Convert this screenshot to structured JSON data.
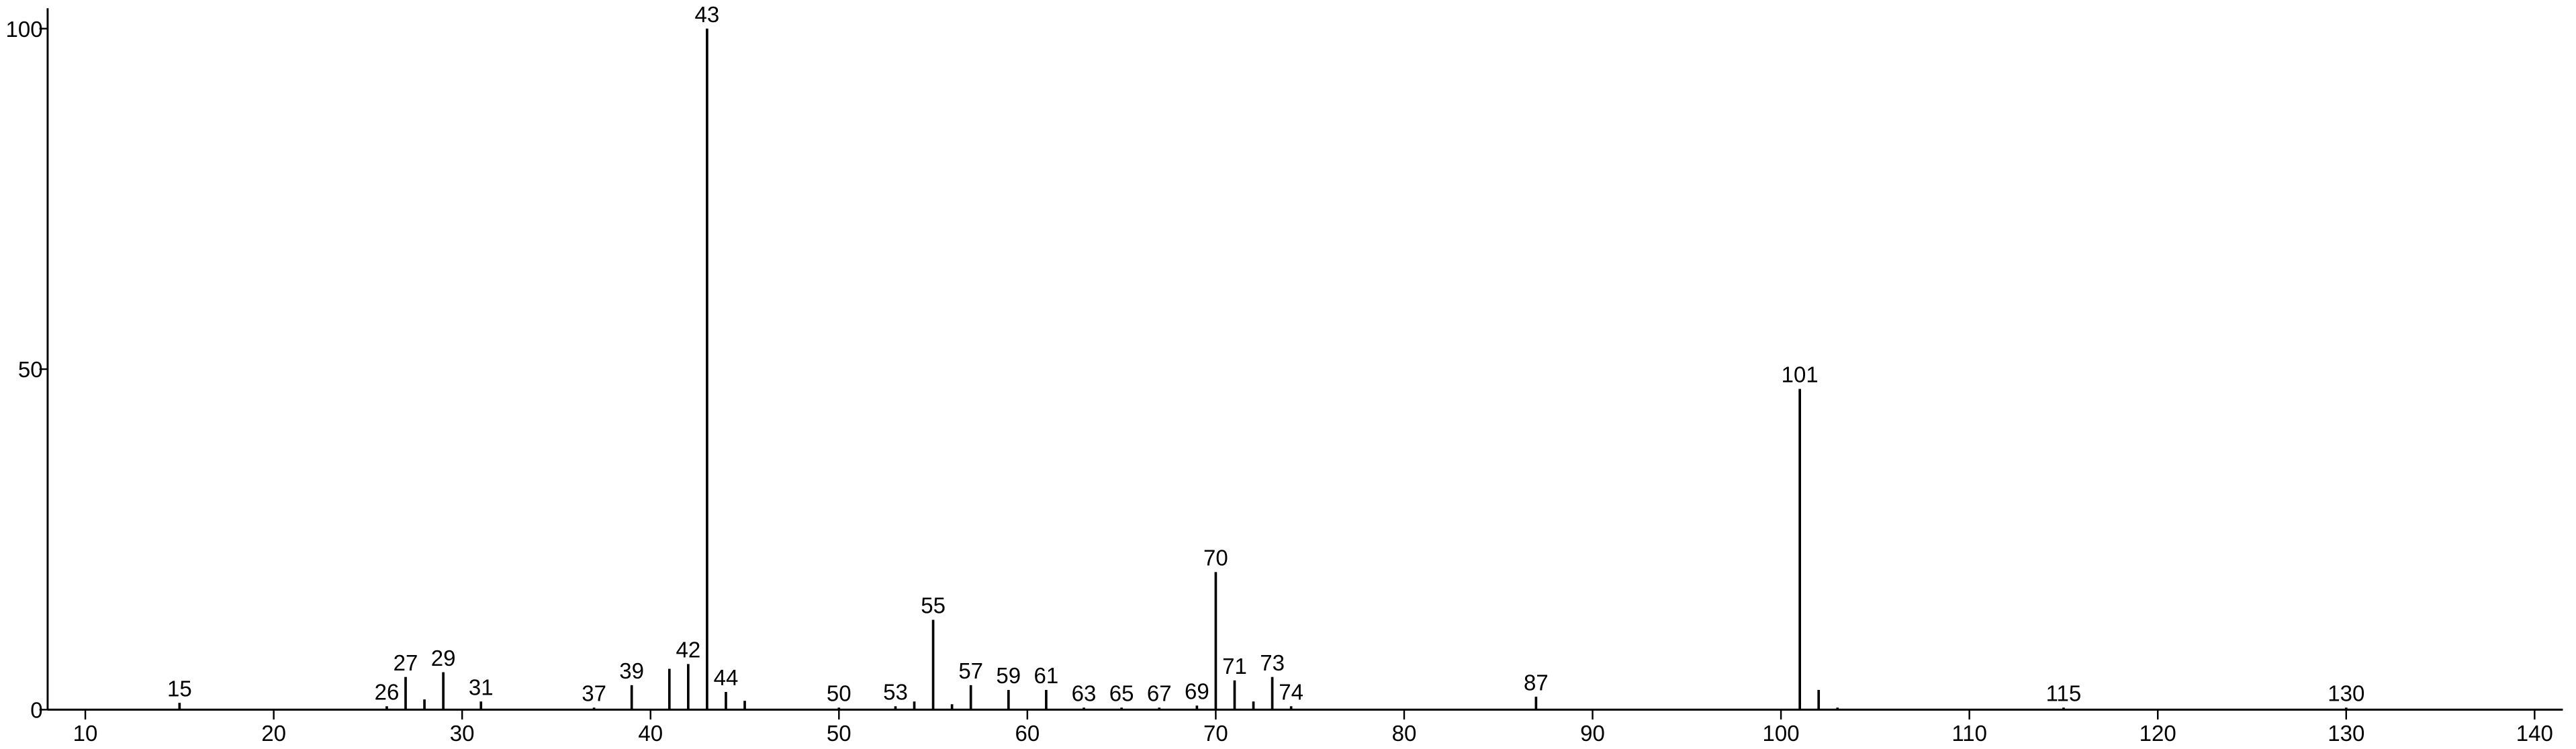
{
  "chart_data": {
    "type": "stem",
    "x": [
      15,
      26,
      27,
      28,
      29,
      31,
      37,
      39,
      41,
      42,
      43,
      44,
      45,
      50,
      53,
      54,
      55,
      56,
      57,
      59,
      61,
      63,
      65,
      67,
      69,
      70,
      71,
      72,
      73,
      74,
      87,
      101,
      102,
      103,
      115,
      130
    ],
    "values": [
      1,
      0.5,
      4.8,
      1.5,
      5.5,
      1.2,
      0.3,
      3.6,
      6,
      6.7,
      100,
      2.6,
      1.3,
      0.3,
      0.5,
      1.2,
      13.2,
      0.8,
      3.6,
      2.9,
      2.9,
      0.3,
      0.3,
      0.3,
      0.6,
      20.2,
      4.3,
      1.2,
      4.8,
      0.5,
      1.9,
      47.1,
      2.9,
      0.3,
      0.3,
      0.3
    ],
    "point_labels": [
      "15",
      "26",
      "27",
      null,
      "29",
      "31",
      "37",
      "39",
      null,
      "42",
      "43",
      "44",
      null,
      "50",
      "53",
      null,
      "55",
      null,
      "57",
      "59",
      "61",
      "63",
      "65",
      "67",
      "69",
      "70",
      "71",
      null,
      "73",
      "74",
      "87",
      "101",
      null,
      null,
      "115",
      "130"
    ],
    "color": "#000000",
    "xlim": [
      8,
      141.5
    ],
    "xticks": [
      10,
      20,
      30,
      40,
      50,
      60,
      70,
      80,
      90,
      100,
      110,
      120,
      130,
      140
    ],
    "ylim": [
      0,
      103
    ],
    "yticks": [
      0,
      50,
      100
    ]
  }
}
